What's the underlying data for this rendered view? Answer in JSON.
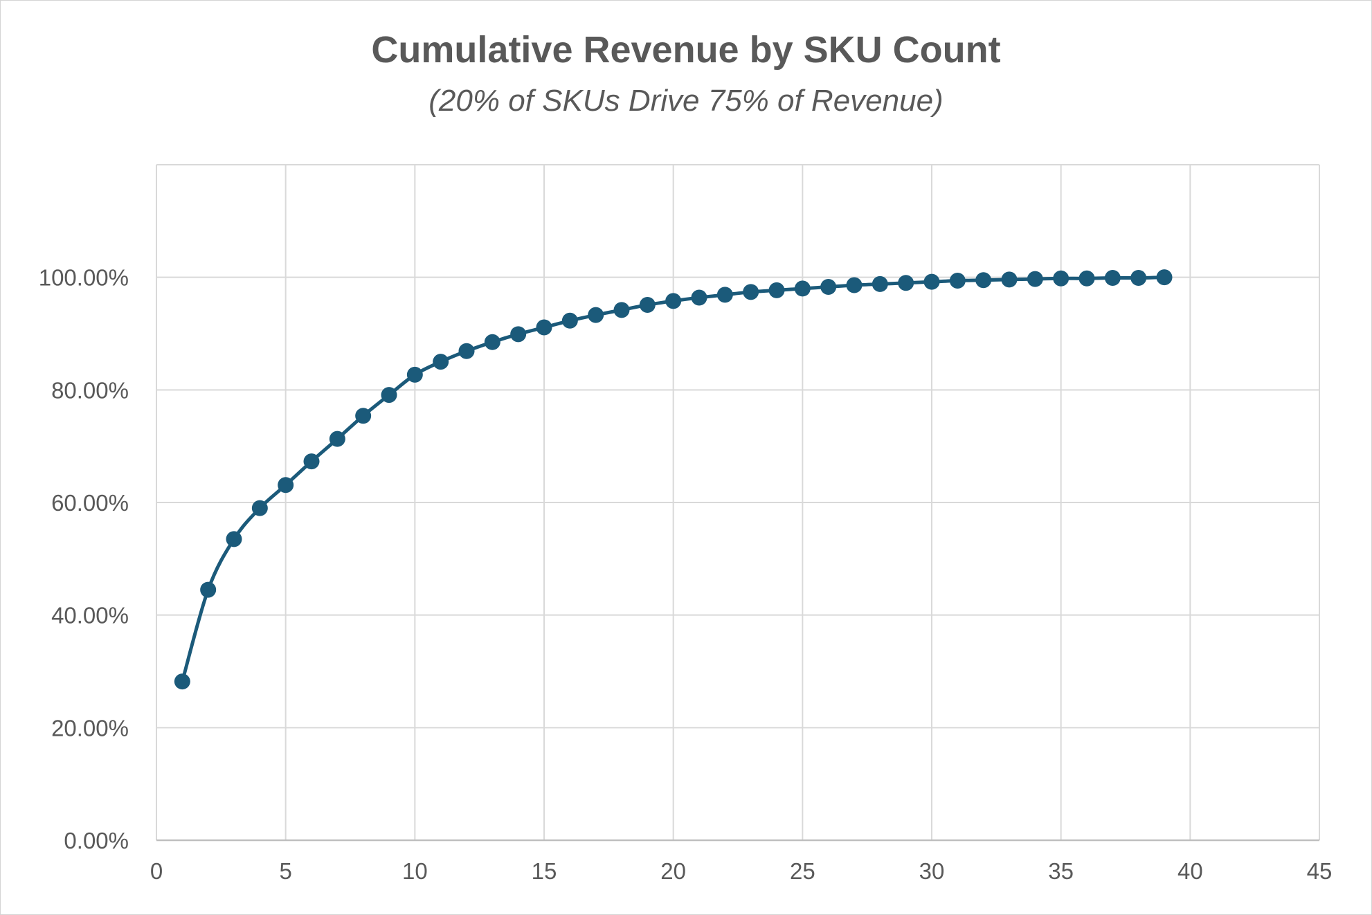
{
  "chart_data": {
    "type": "scatter",
    "title": "Cumulative Revenue by SKU Count",
    "subtitle": "(20% of SKUs Drive 75% of Revenue)",
    "xlabel": "",
    "ylabel": "",
    "xlim": [
      0,
      45
    ],
    "ylim": [
      0,
      1.2
    ],
    "x_ticks": [
      0,
      5,
      10,
      15,
      20,
      25,
      30,
      35,
      40,
      45
    ],
    "y_ticks": [
      0,
      0.2,
      0.4,
      0.6,
      0.8,
      1.0
    ],
    "y_tick_labels": [
      "0.00%",
      "20.00%",
      "40.00%",
      "60.00%",
      "80.00%",
      "100.00%"
    ],
    "grid": true,
    "smooth_line": true,
    "series_color": "#1b5a7a",
    "grid_color": "#d9d9d9",
    "x": [
      1,
      2,
      3,
      4,
      5,
      6,
      7,
      8,
      9,
      10,
      11,
      12,
      13,
      14,
      15,
      16,
      17,
      18,
      19,
      20,
      21,
      22,
      23,
      24,
      25,
      26,
      27,
      28,
      29,
      30,
      31,
      32,
      33,
      34,
      35,
      36,
      37,
      38,
      39
    ],
    "y": [
      0.282,
      0.445,
      0.535,
      0.59,
      0.631,
      0.673,
      0.713,
      0.754,
      0.791,
      0.827,
      0.85,
      0.869,
      0.885,
      0.899,
      0.911,
      0.923,
      0.933,
      0.942,
      0.951,
      0.958,
      0.964,
      0.969,
      0.974,
      0.977,
      0.98,
      0.983,
      0.986,
      0.988,
      0.99,
      0.992,
      0.994,
      0.995,
      0.996,
      0.997,
      0.998,
      0.998,
      0.999,
      0.999,
      1.0
    ]
  }
}
